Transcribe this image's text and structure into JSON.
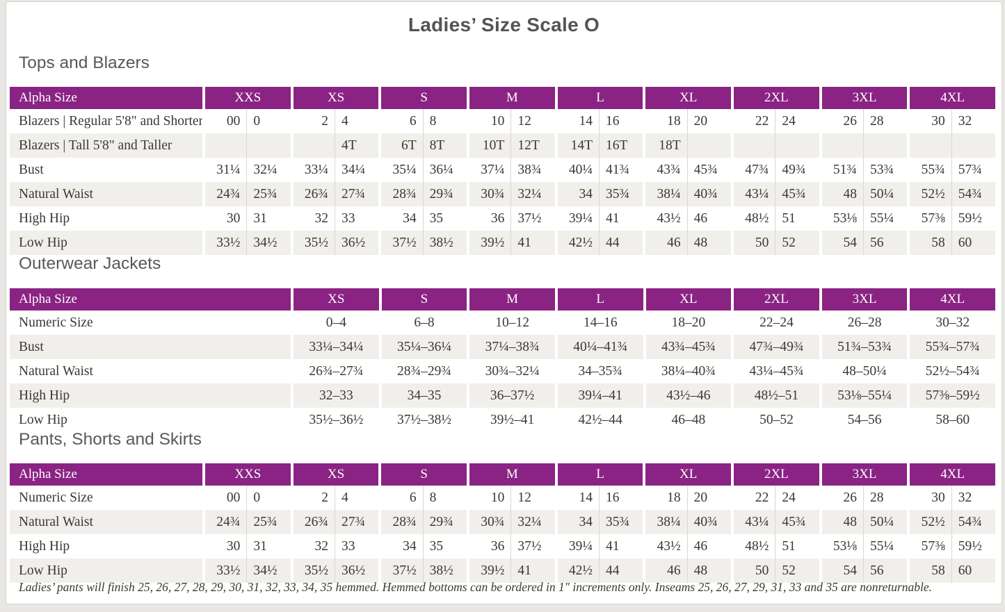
{
  "page_title": "Ladies’ Size Scale O",
  "colors": {
    "header_purple": "#8A2383",
    "header_text": "#FFFFFF",
    "alt_row": "#F1EFEC",
    "heading_gray": "#58585A",
    "body_text": "#3B3833"
  },
  "tables": [
    {
      "section_title": "Tops and Blazers",
      "type": "paired",
      "header_label": "Alpha Size",
      "alpha_sizes": [
        "XXS",
        "XS",
        "S",
        "M",
        "L",
        "XL",
        "2XL",
        "3XL",
        "4XL"
      ],
      "rows": [
        {
          "label": "Blazers | Regular 5'8\" and Shorter",
          "values": [
            [
              "00",
              "0"
            ],
            [
              "2",
              "4"
            ],
            [
              "6",
              "8"
            ],
            [
              "10",
              "12"
            ],
            [
              "14",
              "16"
            ],
            [
              "18",
              "20"
            ],
            [
              "22",
              "24"
            ],
            [
              "26",
              "28"
            ],
            [
              "30",
              "32"
            ]
          ]
        },
        {
          "label": "Blazers | Tall 5'8\" and Taller",
          "values": [
            [
              "",
              ""
            ],
            [
              "",
              "4T"
            ],
            [
              "6T",
              "8T"
            ],
            [
              "10T",
              "12T"
            ],
            [
              "14T",
              "16T"
            ],
            [
              "18T",
              ""
            ],
            [
              "",
              ""
            ],
            [
              "",
              ""
            ],
            [
              "",
              ""
            ]
          ]
        },
        {
          "label": "Bust",
          "values": [
            [
              "31¼",
              "32¼"
            ],
            [
              "33¼",
              "34¼"
            ],
            [
              "35¼",
              "36¼"
            ],
            [
              "37¼",
              "38¾"
            ],
            [
              "40¼",
              "41¾"
            ],
            [
              "43¾",
              "45¾"
            ],
            [
              "47¾",
              "49¾"
            ],
            [
              "51¾",
              "53¾"
            ],
            [
              "55¾",
              "57¾"
            ]
          ]
        },
        {
          "label": "Natural Waist",
          "values": [
            [
              "24¾",
              "25¾"
            ],
            [
              "26¾",
              "27¾"
            ],
            [
              "28¾",
              "29¾"
            ],
            [
              "30¾",
              "32¼"
            ],
            [
              "34",
              "35¾"
            ],
            [
              "38¼",
              "40¾"
            ],
            [
              "43¼",
              "45¾"
            ],
            [
              "48",
              "50¼"
            ],
            [
              "52½",
              "54¾"
            ]
          ]
        },
        {
          "label": "High Hip",
          "values": [
            [
              "30",
              "31"
            ],
            [
              "32",
              "33"
            ],
            [
              "34",
              "35"
            ],
            [
              "36",
              "37½"
            ],
            [
              "39¼",
              "41"
            ],
            [
              "43½",
              "46"
            ],
            [
              "48½",
              "51"
            ],
            [
              "53⅛",
              "55¼"
            ],
            [
              "57⅜",
              "59½"
            ]
          ]
        },
        {
          "label": "Low Hip",
          "values": [
            [
              "33½",
              "34½"
            ],
            [
              "35½",
              "36½"
            ],
            [
              "37½",
              "38½"
            ],
            [
              "39½",
              "41"
            ],
            [
              "42½",
              "44"
            ],
            [
              "46",
              "48"
            ],
            [
              "50",
              "52"
            ],
            [
              "54",
              "56"
            ],
            [
              "58",
              "60"
            ]
          ]
        }
      ]
    },
    {
      "section_title": "Outerwear Jackets",
      "type": "single",
      "header_label": "Alpha Size",
      "alpha_sizes": [
        "XS",
        "S",
        "M",
        "L",
        "XL",
        "2XL",
        "3XL",
        "4XL"
      ],
      "rows": [
        {
          "label": "Numeric Size",
          "values": [
            "0–4",
            "6–8",
            "10–12",
            "14–16",
            "18–20",
            "22–24",
            "26–28",
            "30–32"
          ]
        },
        {
          "label": "Bust",
          "values": [
            "33¼–34¼",
            "35¼–36¼",
            "37¼–38¾",
            "40¼–41¾",
            "43¾–45¾",
            "47¾–49¾",
            "51¾–53¾",
            "55¾–57¾"
          ]
        },
        {
          "label": "Natural Waist",
          "values": [
            "26¾–27¾",
            "28¾–29¾",
            "30¾–32¼",
            "34–35¾",
            "38¼–40¾",
            "43¼–45¾",
            "48–50¼",
            "52½–54¾"
          ]
        },
        {
          "label": "High Hip",
          "values": [
            "32–33",
            "34–35",
            "36–37½",
            "39¼–41",
            "43½–46",
            "48½–51",
            "53⅛–55¼",
            "57⅜–59½"
          ]
        },
        {
          "label": "Low Hip",
          "values": [
            "35½–36½",
            "37½–38½",
            "39½–41",
            "42½–44",
            "46–48",
            "50–52",
            "54–56",
            "58–60"
          ]
        }
      ]
    },
    {
      "section_title": "Pants, Shorts and Skirts",
      "type": "paired",
      "header_label": "Alpha Size",
      "alpha_sizes": [
        "XXS",
        "XS",
        "S",
        "M",
        "L",
        "XL",
        "2XL",
        "3XL",
        "4XL"
      ],
      "rows": [
        {
          "label": "Numeric Size",
          "values": [
            [
              "00",
              "0"
            ],
            [
              "2",
              "4"
            ],
            [
              "6",
              "8"
            ],
            [
              "10",
              "12"
            ],
            [
              "14",
              "16"
            ],
            [
              "18",
              "20"
            ],
            [
              "22",
              "24"
            ],
            [
              "26",
              "28"
            ],
            [
              "30",
              "32"
            ]
          ]
        },
        {
          "label": "Natural Waist",
          "values": [
            [
              "24¾",
              "25¾"
            ],
            [
              "26¾",
              "27¾"
            ],
            [
              "28¾",
              "29¾"
            ],
            [
              "30¾",
              "32¼"
            ],
            [
              "34",
              "35¾"
            ],
            [
              "38¼",
              "40¾"
            ],
            [
              "43¼",
              "45¾"
            ],
            [
              "48",
              "50¼"
            ],
            [
              "52½",
              "54¾"
            ]
          ]
        },
        {
          "label": "High Hip",
          "values": [
            [
              "30",
              "31"
            ],
            [
              "32",
              "33"
            ],
            [
              "34",
              "35"
            ],
            [
              "36",
              "37½"
            ],
            [
              "39¼",
              "41"
            ],
            [
              "43½",
              "46"
            ],
            [
              "48½",
              "51"
            ],
            [
              "53⅛",
              "55¼"
            ],
            [
              "57⅜",
              "59½"
            ]
          ]
        },
        {
          "label": "Low Hip",
          "values": [
            [
              "33½",
              "34½"
            ],
            [
              "35½",
              "36½"
            ],
            [
              "37½",
              "38½"
            ],
            [
              "39½",
              "41"
            ],
            [
              "42½",
              "44"
            ],
            [
              "46",
              "48"
            ],
            [
              "50",
              "52"
            ],
            [
              "54",
              "56"
            ],
            [
              "58",
              "60"
            ]
          ]
        }
      ]
    }
  ],
  "footnote": "Ladies’ pants will finish 25, 26, 27, 28, 29, 30, 31, 32, 33, 34, 35 hemmed. Hemmed bottoms can be ordered in 1″ increments only. Inseams 25, 26, 27, 29, 31, 33 and 35 are nonreturnable."
}
